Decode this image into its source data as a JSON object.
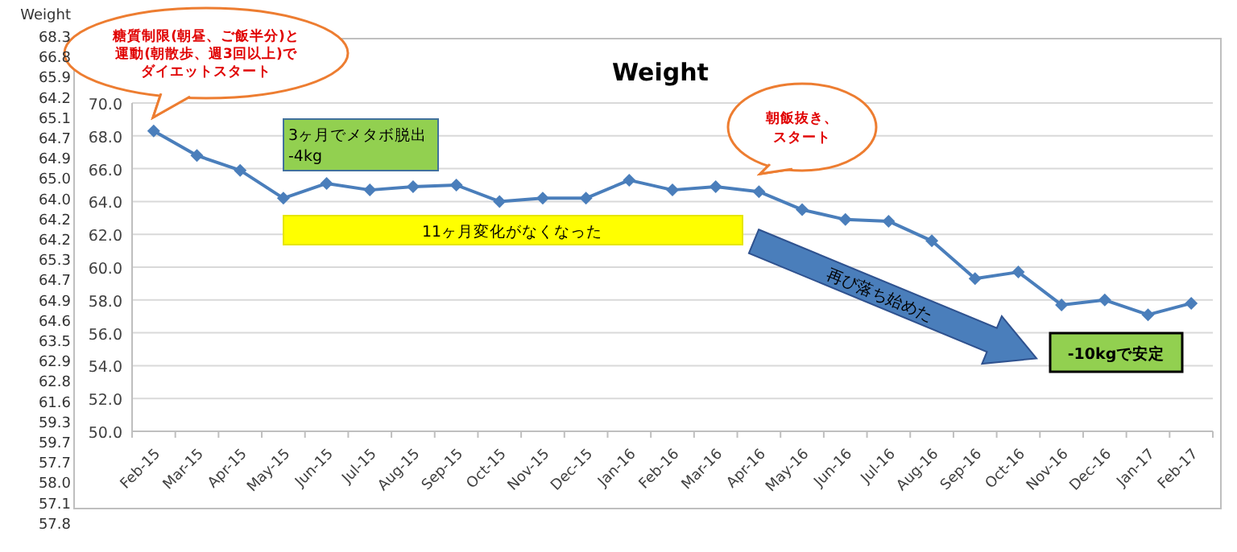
{
  "chart_data": {
    "type": "line",
    "title": "Weight",
    "categories": [
      "Feb-15",
      "Mar-15",
      "Apr-15",
      "May-15",
      "Jun-15",
      "Jul-15",
      "Aug-15",
      "Sep-15",
      "Oct-15",
      "Nov-15",
      "Dec-15",
      "Jan-16",
      "Feb-16",
      "Mar-16",
      "Apr-16",
      "May-16",
      "Jun-16",
      "Jul-16",
      "Aug-16",
      "Sep-16",
      "Oct-16",
      "Nov-16",
      "Dec-16",
      "Jan-17",
      "Feb-17"
    ],
    "values": [
      68.3,
      66.8,
      65.9,
      64.2,
      65.1,
      64.7,
      64.9,
      65.0,
      64.0,
      64.2,
      64.2,
      65.3,
      64.7,
      64.9,
      64.6,
      63.5,
      62.9,
      62.8,
      61.6,
      59.3,
      59.7,
      57.7,
      58.0,
      57.1,
      57.8
    ],
    "color": "#4a7ebb",
    "ylim": [
      50,
      70
    ],
    "yticks": [
      {
        "value": 50,
        "label": "50.0"
      },
      {
        "value": 52,
        "label": "52.0"
      },
      {
        "value": 54,
        "label": "54.0"
      },
      {
        "value": 56,
        "label": "56.0"
      },
      {
        "value": 58,
        "label": "58.0"
      },
      {
        "value": 60,
        "label": "60.0"
      },
      {
        "value": 62,
        "label": "62.0"
      },
      {
        "value": 64,
        "label": "64.0"
      },
      {
        "value": 66,
        "label": "66.0"
      },
      {
        "value": 68,
        "label": "68.0"
      },
      {
        "value": 70,
        "label": "70.0"
      }
    ],
    "grid": "y",
    "marker": "diamond",
    "line_style": "solid",
    "annotations": [
      "糖質制限(朝昼、ご飯半分)と運動(朝散歩、週3回以上)でダイエットスタート",
      "3ヶ月でメタボ脱出-4kg",
      "11ヶ月変化がなくなった",
      "朝飯抜き、スタート",
      "再び落ち始めた",
      "-10kgで安定",
      "Weight",
      "68.3",
      "66.8",
      "65.9",
      "64.2",
      "65.1",
      "64.7",
      "64.9",
      "65.0",
      "64.0",
      "64.2",
      "64.2",
      "65.3",
      "64.7",
      "64.9",
      "64.6",
      "63.5",
      "62.9",
      "62.8",
      "61.6",
      "59.3",
      "59.7",
      "57.7",
      "58.0",
      "57.1",
      "57.8"
    ]
  }
}
